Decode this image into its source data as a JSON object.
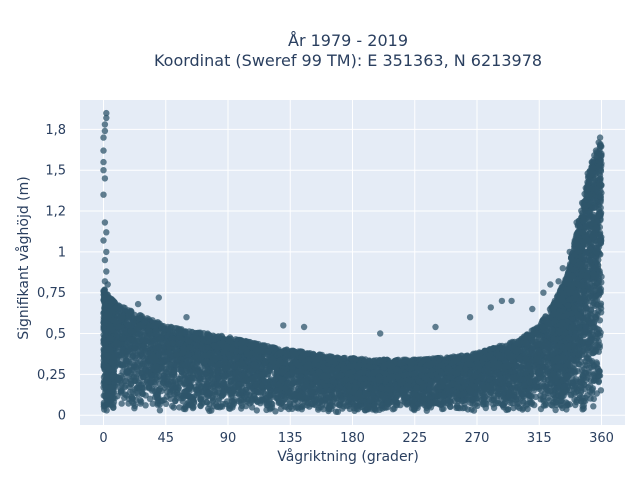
{
  "chart_data": {
    "type": "scatter",
    "title": "År 1979 - 2019",
    "subtitle": "Koordinat (Sweref 99 TM): E 351363, N 6213978",
    "xlabel": "Vågriktning (grader)",
    "ylabel": "Signifikant våghöjd (m)",
    "xlim": [
      -17,
      377
    ],
    "ylim": [
      -0.06,
      1.93
    ],
    "x_ticks": [
      0,
      45,
      90,
      135,
      180,
      225,
      270,
      315,
      360
    ],
    "y_ticks": [
      0,
      0.25,
      0.5,
      0.75,
      1,
      1.25,
      1.5,
      1.75
    ],
    "y_tick_labels": [
      "0",
      "0,25",
      "0,5",
      "0,75",
      "1",
      "1,2",
      "1,5",
      "1,8"
    ],
    "grid": true,
    "marker_color": "#2f566b",
    "plot_bg": "#e5ecf6",
    "envelope": {
      "direction": [
        0,
        5,
        10,
        20,
        30,
        45,
        60,
        75,
        90,
        105,
        120,
        135,
        150,
        165,
        180,
        195,
        210,
        225,
        240,
        255,
        270,
        285,
        300,
        315,
        325,
        335,
        340,
        345,
        350,
        355,
        360
      ],
      "max_height": [
        0.78,
        0.72,
        0.68,
        0.64,
        0.6,
        0.55,
        0.52,
        0.5,
        0.48,
        0.45,
        0.42,
        0.4,
        0.38,
        0.36,
        0.35,
        0.34,
        0.34,
        0.34,
        0.35,
        0.36,
        0.38,
        0.42,
        0.46,
        0.55,
        0.68,
        0.85,
        1.05,
        1.25,
        1.45,
        1.6,
        1.68
      ]
    },
    "outliers": [
      {
        "x": 2,
        "y": 1.85
      },
      {
        "x": 2,
        "y": 1.82
      },
      {
        "x": 1,
        "y": 1.78
      },
      {
        "x": 1,
        "y": 1.74
      },
      {
        "x": 0,
        "y": 1.7
      },
      {
        "x": 0,
        "y": 1.62
      },
      {
        "x": 0,
        "y": 1.55
      },
      {
        "x": 0,
        "y": 1.5
      },
      {
        "x": 1,
        "y": 1.45
      },
      {
        "x": 0,
        "y": 1.35
      },
      {
        "x": 1,
        "y": 1.18
      },
      {
        "x": 2,
        "y": 1.12
      },
      {
        "x": 0,
        "y": 1.07
      },
      {
        "x": 2,
        "y": 1.0
      },
      {
        "x": 1,
        "y": 0.95
      },
      {
        "x": 2,
        "y": 0.88
      },
      {
        "x": 1,
        "y": 0.82
      },
      {
        "x": 3,
        "y": 0.8
      },
      {
        "x": 40,
        "y": 0.72
      },
      {
        "x": 25,
        "y": 0.68
      },
      {
        "x": 60,
        "y": 0.6
      },
      {
        "x": 130,
        "y": 0.55
      },
      {
        "x": 145,
        "y": 0.54
      },
      {
        "x": 200,
        "y": 0.5
      },
      {
        "x": 240,
        "y": 0.54
      },
      {
        "x": 265,
        "y": 0.6
      },
      {
        "x": 280,
        "y": 0.66
      },
      {
        "x": 288,
        "y": 0.7
      },
      {
        "x": 295,
        "y": 0.7
      },
      {
        "x": 310,
        "y": 0.65
      },
      {
        "x": 318,
        "y": 0.75
      },
      {
        "x": 323,
        "y": 0.8
      },
      {
        "x": 329,
        "y": 0.82
      },
      {
        "x": 332,
        "y": 0.9
      },
      {
        "x": 337,
        "y": 1.0
      },
      {
        "x": 342,
        "y": 1.18
      },
      {
        "x": 346,
        "y": 1.3
      },
      {
        "x": 350,
        "y": 1.48
      },
      {
        "x": 353,
        "y": 1.55
      },
      {
        "x": 356,
        "y": 1.62
      },
      {
        "x": 358,
        "y": 1.67
      },
      {
        "x": 359,
        "y": 1.7
      }
    ]
  }
}
